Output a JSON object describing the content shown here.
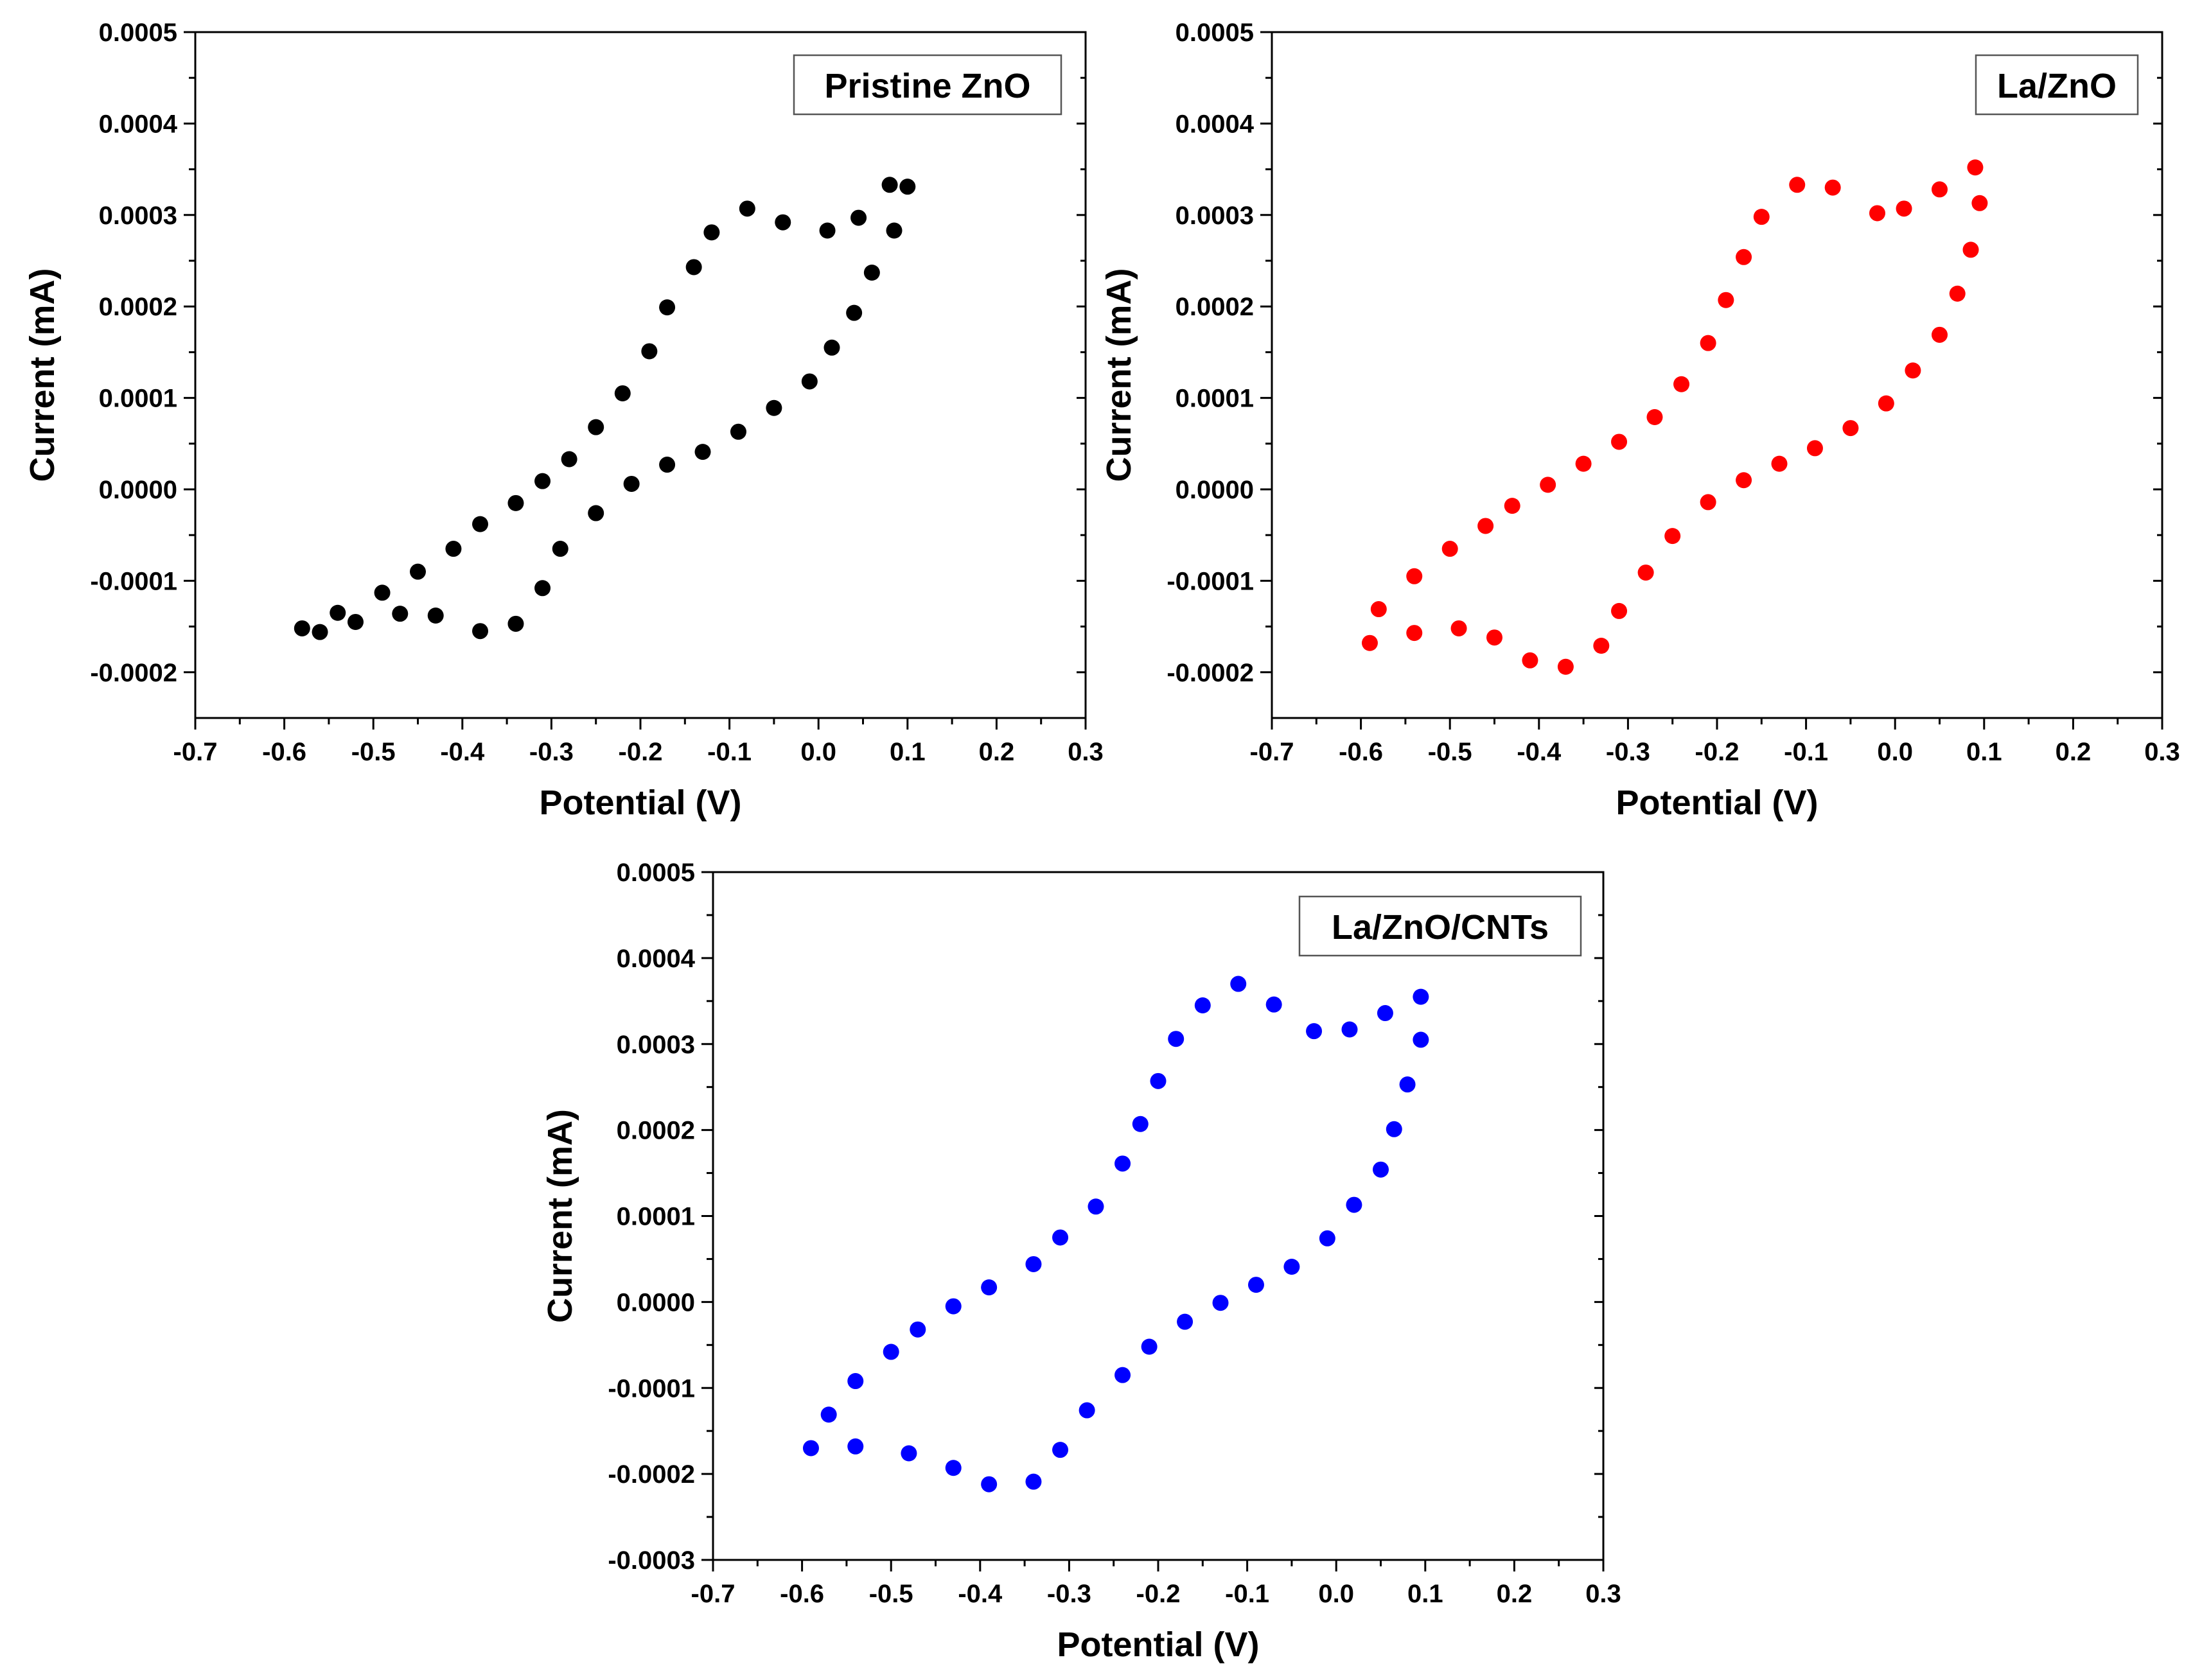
{
  "chart_data": [
    {
      "type": "scatter",
      "title": "",
      "legend": "Pristine ZnO",
      "legend_position": "top-right",
      "xlabel": "Potential (V)",
      "ylabel": "Current (mA)",
      "xlim": [
        -0.7,
        0.3
      ],
      "ylim": [
        -0.00025,
        0.0005
      ],
      "xticks": [
        "-0.7",
        "-0.6",
        "-0.5",
        "-0.4",
        "-0.3",
        "-0.2",
        "-0.1",
        "0.0",
        "0.1",
        "0.2",
        "0.3"
      ],
      "yticks": [
        "-0.0002",
        "-0.0001",
        "0.0000",
        "0.0001",
        "0.0002",
        "0.0003",
        "0.0004",
        "0.0005"
      ],
      "color": "#000000",
      "points": [
        [
          -0.58,
          -0.000152
        ],
        [
          -0.56,
          -0.000156
        ],
        [
          -0.52,
          -0.000145
        ],
        [
          -0.47,
          -0.000136
        ],
        [
          -0.43,
          -0.000138
        ],
        [
          -0.38,
          -0.000155
        ],
        [
          -0.34,
          -0.000147
        ],
        [
          -0.31,
          -0.000108
        ],
        [
          -0.29,
          -6.5e-05
        ],
        [
          -0.25,
          -2.6e-05
        ],
        [
          -0.21,
          6e-06
        ],
        [
          -0.17,
          2.7e-05
        ],
        [
          -0.13,
          4.1e-05
        ],
        [
          -0.09,
          6.3e-05
        ],
        [
          -0.05,
          8.9e-05
        ],
        [
          -0.01,
          0.000118
        ],
        [
          0.015,
          0.000155
        ],
        [
          0.04,
          0.000193
        ],
        [
          0.06,
          0.000237
        ],
        [
          0.085,
          0.000283
        ],
        [
          0.1,
          0.000331
        ],
        [
          0.08,
          0.000333
        ],
        [
          0.045,
          0.000297
        ],
        [
          0.01,
          0.000283
        ],
        [
          -0.04,
          0.000292
        ],
        [
          -0.08,
          0.000307
        ],
        [
          -0.12,
          0.000281
        ],
        [
          -0.14,
          0.000243
        ],
        [
          -0.17,
          0.000199
        ],
        [
          -0.19,
          0.000151
        ],
        [
          -0.22,
          0.000105
        ],
        [
          -0.25,
          6.8e-05
        ],
        [
          -0.28,
          3.3e-05
        ],
        [
          -0.31,
          9e-06
        ],
        [
          -0.34,
          -1.5e-05
        ],
        [
          -0.38,
          -3.8e-05
        ],
        [
          -0.41,
          -6.5e-05
        ],
        [
          -0.45,
          -9e-05
        ],
        [
          -0.49,
          -0.000113
        ],
        [
          -0.54,
          -0.000135
        ]
      ]
    },
    {
      "type": "scatter",
      "title": "",
      "legend": "La/ZnO",
      "legend_position": "top-right",
      "xlabel": "Potential (V)",
      "ylabel": "Current (mA)",
      "xlim": [
        -0.7,
        0.3
      ],
      "ylim": [
        -0.00025,
        0.0005
      ],
      "xticks": [
        "-0.7",
        "-0.6",
        "-0.5",
        "-0.4",
        "-0.3",
        "-0.2",
        "-0.1",
        "0.0",
        "0.1",
        "0.2",
        "0.3"
      ],
      "yticks": [
        "-0.0002",
        "-0.0001",
        "0.0000",
        "0.0001",
        "0.0002",
        "0.0003",
        "0.0004",
        "0.0005"
      ],
      "color": "#ff0000",
      "points": [
        [
          -0.59,
          -0.000168
        ],
        [
          -0.54,
          -0.000157
        ],
        [
          -0.49,
          -0.000152
        ],
        [
          -0.45,
          -0.000162
        ],
        [
          -0.41,
          -0.000187
        ],
        [
          -0.37,
          -0.000194
        ],
        [
          -0.33,
          -0.000171
        ],
        [
          -0.31,
          -0.000133
        ],
        [
          -0.28,
          -9.1e-05
        ],
        [
          -0.25,
          -5.1e-05
        ],
        [
          -0.21,
          -1.4e-05
        ],
        [
          -0.17,
          1e-05
        ],
        [
          -0.13,
          2.8e-05
        ],
        [
          -0.09,
          4.5e-05
        ],
        [
          -0.05,
          6.7e-05
        ],
        [
          -0.01,
          9.4e-05
        ],
        [
          0.02,
          0.00013
        ],
        [
          0.05,
          0.000169
        ],
        [
          0.07,
          0.000214
        ],
        [
          0.085,
          0.000262
        ],
        [
          0.095,
          0.000313
        ],
        [
          0.09,
          0.000352
        ],
        [
          0.05,
          0.000328
        ],
        [
          0.01,
          0.000307
        ],
        [
          -0.02,
          0.000302
        ],
        [
          -0.07,
          0.00033
        ],
        [
          -0.11,
          0.000333
        ],
        [
          -0.15,
          0.000298
        ],
        [
          -0.17,
          0.000254
        ],
        [
          -0.19,
          0.000207
        ],
        [
          -0.21,
          0.00016
        ],
        [
          -0.24,
          0.000115
        ],
        [
          -0.27,
          7.9e-05
        ],
        [
          -0.31,
          5.2e-05
        ],
        [
          -0.35,
          2.8e-05
        ],
        [
          -0.39,
          5e-06
        ],
        [
          -0.43,
          -1.8e-05
        ],
        [
          -0.46,
          -4e-05
        ],
        [
          -0.5,
          -6.5e-05
        ],
        [
          -0.54,
          -9.5e-05
        ],
        [
          -0.58,
          -0.000131
        ]
      ]
    },
    {
      "type": "scatter",
      "title": "",
      "legend": "La/ZnO/CNTs",
      "legend_position": "top-right",
      "xlabel": "Potential (V)",
      "ylabel": "Current (mA)",
      "xlim": [
        -0.7,
        0.3
      ],
      "ylim": [
        -0.0003,
        0.0005
      ],
      "xticks": [
        "-0.7",
        "-0.6",
        "-0.5",
        "-0.4",
        "-0.3",
        "-0.2",
        "-0.1",
        "0.0",
        "0.1",
        "0.2",
        "0.3"
      ],
      "yticks": [
        "-0.0003",
        "-0.0002",
        "-0.0001",
        "0.0000",
        "0.0001",
        "0.0002",
        "0.0003",
        "0.0004",
        "0.0005"
      ],
      "color": "#0000ff",
      "points": [
        [
          -0.59,
          -0.00017
        ],
        [
          -0.54,
          -0.000168
        ],
        [
          -0.48,
          -0.000176
        ],
        [
          -0.43,
          -0.000193
        ],
        [
          -0.39,
          -0.000212
        ],
        [
          -0.34,
          -0.000209
        ],
        [
          -0.31,
          -0.000172
        ],
        [
          -0.28,
          -0.000126
        ],
        [
          -0.24,
          -8.5e-05
        ],
        [
          -0.21,
          -5.2e-05
        ],
        [
          -0.17,
          -2.3e-05
        ],
        [
          -0.13,
          -1e-06
        ],
        [
          -0.09,
          2e-05
        ],
        [
          -0.05,
          4.1e-05
        ],
        [
          -0.01,
          7.4e-05
        ],
        [
          0.02,
          0.000113
        ],
        [
          0.05,
          0.000154
        ],
        [
          0.065,
          0.000201
        ],
        [
          0.08,
          0.000253
        ],
        [
          0.095,
          0.000305
        ],
        [
          0.095,
          0.000355
        ],
        [
          0.055,
          0.000336
        ],
        [
          0.015,
          0.000317
        ],
        [
          -0.025,
          0.000315
        ],
        [
          -0.07,
          0.000346
        ],
        [
          -0.11,
          0.00037
        ],
        [
          -0.15,
          0.000345
        ],
        [
          -0.18,
          0.000306
        ],
        [
          -0.2,
          0.000257
        ],
        [
          -0.22,
          0.000207
        ],
        [
          -0.24,
          0.000161
        ],
        [
          -0.27,
          0.000111
        ],
        [
          -0.31,
          7.5e-05
        ],
        [
          -0.34,
          4.4e-05
        ],
        [
          -0.39,
          1.7e-05
        ],
        [
          -0.43,
          -5e-06
        ],
        [
          -0.47,
          -3.2e-05
        ],
        [
          -0.5,
          -5.8e-05
        ],
        [
          -0.54,
          -9.2e-05
        ],
        [
          -0.57,
          -0.000131
        ]
      ]
    }
  ]
}
